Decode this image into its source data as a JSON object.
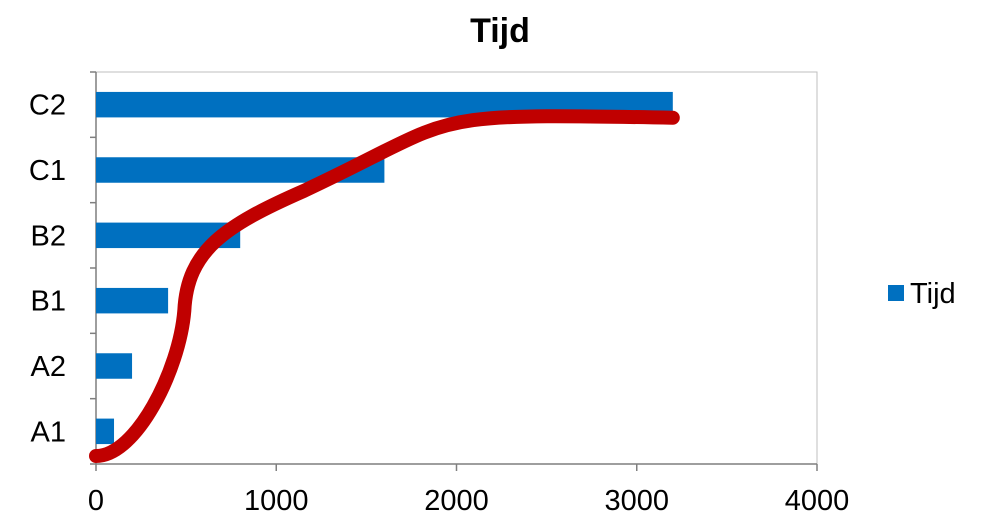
{
  "chart_data": {
    "type": "bar",
    "orientation": "horizontal",
    "title": "Tijd",
    "categories": [
      "A1",
      "A2",
      "B1",
      "B2",
      "C1",
      "C2"
    ],
    "series": [
      {
        "name": "Tijd",
        "values": [
          100,
          200,
          400,
          800,
          1600,
          3200
        ]
      }
    ],
    "xlim": [
      0,
      4000
    ],
    "x_ticks": [
      "0",
      "1000",
      "2000",
      "3000",
      "4000"
    ],
    "grid": false,
    "legend_position": "right",
    "bar_color": "#0070C0",
    "annotation": {
      "type": "freehand-curve",
      "color": "#C00000",
      "points": [
        {
          "x": 0,
          "category": "A1"
        },
        {
          "x": 490,
          "category": "B1"
        },
        {
          "x": 3200,
          "category": "C2"
        }
      ]
    }
  }
}
